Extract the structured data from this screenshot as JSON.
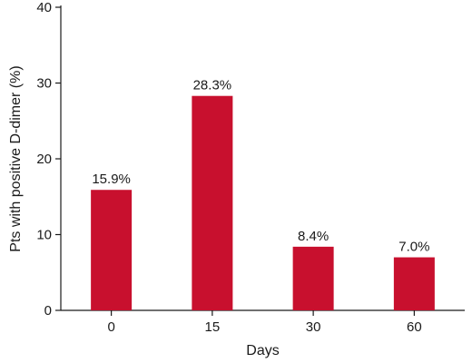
{
  "chart_data": {
    "type": "bar",
    "categories": [
      "0",
      "15",
      "30",
      "60"
    ],
    "values": [
      15.9,
      28.3,
      8.4,
      7.0
    ],
    "data_labels": [
      "15.9%",
      "28.3%",
      "8.4%",
      "7.0%"
    ],
    "xlabel": "Days",
    "ylabel": "Pts with positive D-dimer (%)",
    "ylim": [
      0,
      40
    ],
    "yticks": [
      0,
      10,
      20,
      30,
      40
    ],
    "bar_color": "#c8102e",
    "grid": false
  }
}
